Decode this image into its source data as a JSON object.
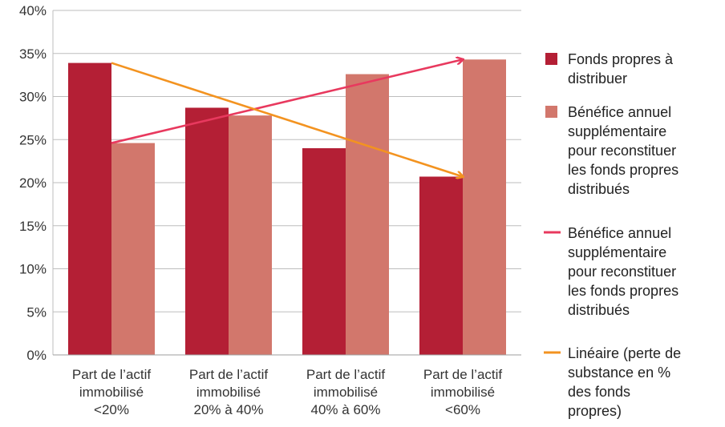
{
  "chart_data": {
    "type": "bar",
    "title": "",
    "xlabel": "",
    "ylabel": "",
    "ylim": [
      0,
      40
    ],
    "yticks": [
      0,
      5,
      10,
      15,
      20,
      25,
      30,
      35,
      40
    ],
    "ytick_suffix": "%",
    "grid": true,
    "legend_position": "right",
    "categories": [
      [
        "Part de l’actif",
        "immobilisé",
        "<20%"
      ],
      [
        "Part de l’actif",
        "immobilisé",
        "20% à 40%"
      ],
      [
        "Part de l’actif",
        "immobilisé",
        "40% à 60%"
      ],
      [
        "Part de l’actif",
        "immobilisé",
        "<60%"
      ]
    ],
    "series": [
      {
        "name": [
          "Fonds propres à",
          "distribuer"
        ],
        "kind": "bar",
        "color": "#b41f35",
        "values": [
          33.9,
          28.7,
          24.0,
          20.7
        ]
      },
      {
        "name": [
          "Bénéfice annuel",
          "supplémentaire",
          "pour reconstituer",
          "les fonds propres",
          "distribués"
        ],
        "kind": "bar",
        "color": "#d2776c",
        "values": [
          24.6,
          27.8,
          32.6,
          34.3
        ]
      },
      {
        "name": [
          "Bénéfice annuel",
          "supplémentaire",
          "pour reconstituer",
          "les fonds propres",
          "distribués"
        ],
        "kind": "trend-arrow",
        "color": "#e8395e",
        "from": [
          0,
          24.6
        ],
        "to": [
          3,
          34.3
        ]
      },
      {
        "name": [
          "Linéaire (perte de",
          "substance en %",
          "des fonds",
          "propres)"
        ],
        "kind": "trend-arrow",
        "color": "#f39320",
        "from": [
          0,
          33.9
        ],
        "to": [
          3,
          20.7
        ]
      }
    ]
  }
}
